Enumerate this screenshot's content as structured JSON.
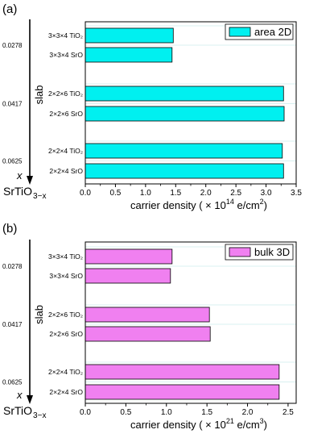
{
  "chart_data": [
    {
      "type": "bar",
      "orientation": "horizontal",
      "panel_label": "(a)",
      "legend": "area 2D",
      "color": "#00f0f0",
      "categories": [
        "3×3×4 TiO₂",
        "3×3×4 SrO",
        "2×2×6 TiO₂",
        "2×2×6 SrO",
        "2×2×4 TiO₂",
        "2×2×4 SrO"
      ],
      "values": [
        1.46,
        1.44,
        3.29,
        3.3,
        3.27,
        3.29
      ],
      "x_values": [
        "0.0278",
        "0.0417",
        "0.0625"
      ],
      "xlim": [
        0.0,
        3.5
      ],
      "xticks": [
        "0.0",
        "0.5",
        "1.0",
        "1.5",
        "2.0",
        "2.5",
        "3.0",
        "3.5"
      ],
      "xlabel_prefix": "carrier density ( × 10",
      "xlabel_exp": "14",
      "xlabel_mid": " e/cm",
      "xlabel_exp2": "2",
      "xlabel_suffix": ")",
      "side_label": "slab",
      "var_label": "x",
      "formula_main": "SrTiO",
      "formula_sub": "3−x"
    },
    {
      "type": "bar",
      "orientation": "horizontal",
      "panel_label": "(b)",
      "legend": "bulk 3D",
      "color": "#f080f0",
      "categories": [
        "3×3×4 TiO₂",
        "3×3×4 SrO",
        "2×2×6 TiO₂",
        "2×2×6 SrO",
        "2×2×4 TiO₂",
        "2×2×4 SrO"
      ],
      "values": [
        1.07,
        1.05,
        1.53,
        1.54,
        2.39,
        2.39
      ],
      "x_values": [
        "0.0278",
        "0.0417",
        "0.0625"
      ],
      "xlim": [
        0.0,
        2.6
      ],
      "xticks": [
        "0.0",
        "0.5",
        "1.0",
        "1.5",
        "2.0",
        "2.5"
      ],
      "xlabel_prefix": "carrier density ( × 10",
      "xlabel_exp": "21",
      "xlabel_mid": " e/cm",
      "xlabel_exp2": "3",
      "xlabel_suffix": ")",
      "side_label": "slab",
      "var_label": "x",
      "formula_main": "SrTiO",
      "formula_sub": "3−x"
    }
  ]
}
